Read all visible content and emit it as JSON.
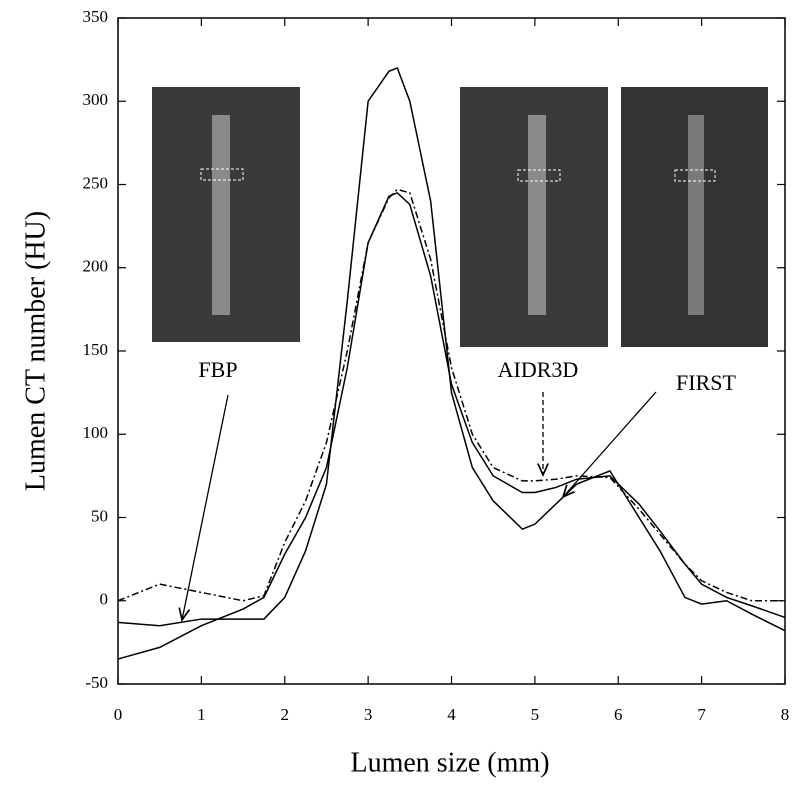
{
  "chart_data": {
    "type": "line",
    "xlabel": "Lumen size (mm)",
    "ylabel": "Lumen CT number (HU)",
    "x": [
      0,
      0.5,
      1,
      1.5,
      1.75,
      2,
      2.25,
      2.5,
      2.75,
      3,
      3.25,
      3.35,
      3.5,
      3.75,
      4,
      4.25,
      4.5,
      4.85,
      5,
      5.25,
      5.5,
      5.9,
      6.25,
      6.5,
      6.8,
      7,
      7.3,
      7.6,
      8
    ],
    "series": [
      {
        "name": "FBP",
        "color": "#000000",
        "line_style": "solid",
        "values": [
          -13,
          -15,
          -11,
          -11,
          -11,
          2,
          30,
          70,
          180,
          300,
          318,
          320,
          300,
          240,
          125,
          80,
          60,
          43,
          46,
          58,
          70,
          78,
          50,
          30,
          2,
          -2,
          0,
          -8,
          -18
        ]
      },
      {
        "name": "AIDR3D",
        "color": "#000000",
        "line_style": "dashdot",
        "values": [
          0,
          10,
          5,
          0,
          3,
          35,
          60,
          95,
          150,
          215,
          242,
          247,
          245,
          205,
          140,
          100,
          80,
          72,
          72,
          73,
          75,
          74,
          55,
          40,
          22,
          12,
          5,
          0,
          0
        ]
      },
      {
        "name": "FIRST",
        "color": "#000000",
        "line_style": "solid",
        "values": [
          -35,
          -28,
          -15,
          -5,
          2,
          28,
          50,
          80,
          140,
          215,
          243,
          245,
          238,
          195,
          130,
          95,
          75,
          65,
          65,
          68,
          73,
          75,
          58,
          42,
          22,
          10,
          2,
          -3,
          -10
        ]
      }
    ],
    "xlim": [
      0,
      8
    ],
    "xticks": [
      0,
      1,
      2,
      3,
      4,
      5,
      6,
      7,
      8
    ],
    "ylim": [
      -50,
      350
    ],
    "yticks": [
      -50,
      0,
      50,
      100,
      150,
      200,
      250,
      300,
      350
    ],
    "grid": false
  }
}
